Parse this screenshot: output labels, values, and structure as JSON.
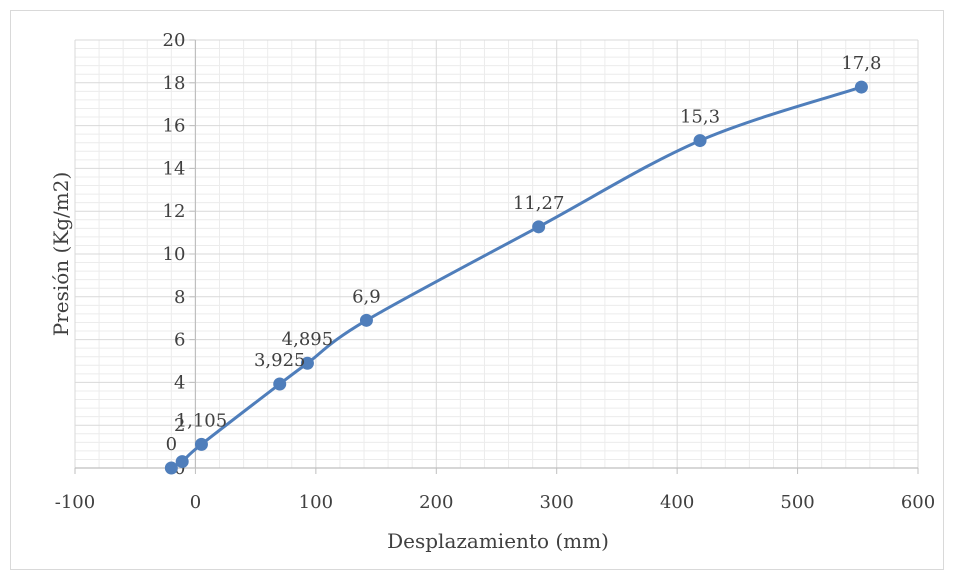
{
  "chart_data": {
    "type": "scatter",
    "title": "",
    "xlabel": "Desplazamiento (mm)",
    "ylabel": "Presión (Kg/m2)",
    "xlim": [
      -100,
      600
    ],
    "ylim": [
      0,
      20
    ],
    "x_ticks": [
      "-100",
      "0",
      "100",
      "200",
      "300",
      "400",
      "500",
      "600"
    ],
    "y_ticks": [
      "0",
      "2",
      "4",
      "6",
      "8",
      "10",
      "12",
      "14",
      "16",
      "18",
      "20"
    ],
    "grid": "major and minor gridlines",
    "legend": "none",
    "line_style": "smoothed line with circle markers",
    "colors": {
      "series": "#4f7ebb",
      "grid_major": "#d9d9d9",
      "grid_minor": "#ececec",
      "axis": "#bfbfbf"
    },
    "series": [
      {
        "x": [
          -20,
          -11,
          5,
          70,
          93,
          142,
          285,
          419,
          553
        ],
        "y": [
          0,
          0.3,
          1.105,
          3.925,
          4.895,
          6.9,
          11.27,
          15.3,
          17.8
        ],
        "labels": [
          "0",
          "",
          "1,105",
          "3,925",
          "4,895",
          "6,9",
          "11,27",
          "15,3",
          "17,8"
        ]
      }
    ]
  }
}
